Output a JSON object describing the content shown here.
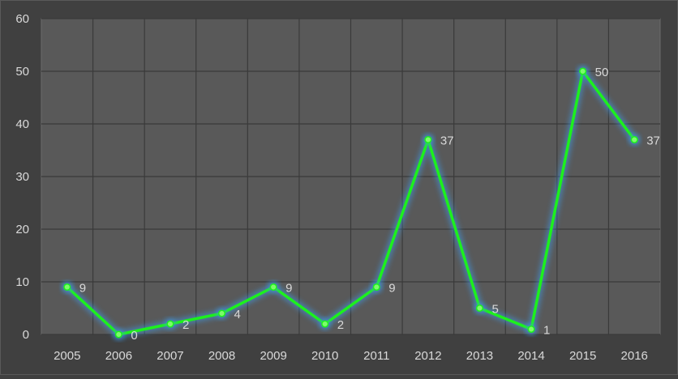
{
  "chart_data": {
    "type": "line",
    "title": "",
    "xlabel": "",
    "ylabel": "",
    "categories": [
      "2005",
      "2006",
      "2007",
      "2008",
      "2009",
      "2010",
      "2011",
      "2012",
      "2013",
      "2014",
      "2015",
      "2016"
    ],
    "series": [
      {
        "values": [
          9,
          0,
          2,
          4,
          9,
          2,
          9,
          37,
          5,
          1,
          50,
          37
        ],
        "data_labels": [
          "9",
          "0",
          "2",
          "4",
          "9",
          "2",
          "9",
          "37",
          "5",
          "1",
          "50",
          "37"
        ]
      }
    ],
    "ylim": [
      0,
      60
    ],
    "y_ticks": [
      0,
      10,
      20,
      30,
      40,
      50,
      60
    ],
    "y_tick_labels": [
      "0",
      "10",
      "20",
      "30",
      "40",
      "50",
      "60"
    ],
    "grid": true,
    "legend": "none",
    "colors": {
      "background": "#404040",
      "plot_background": "#595959",
      "plot_border": "#6a6a6a",
      "gridline": "#3a3a3a",
      "line": "#1df01d",
      "marker_fill": "#7cfc6a",
      "glow": "#3d9be9",
      "axis_text": "#d9d9d9",
      "data_label_text": "#d9d9d9",
      "frame_border": "#595959"
    }
  }
}
